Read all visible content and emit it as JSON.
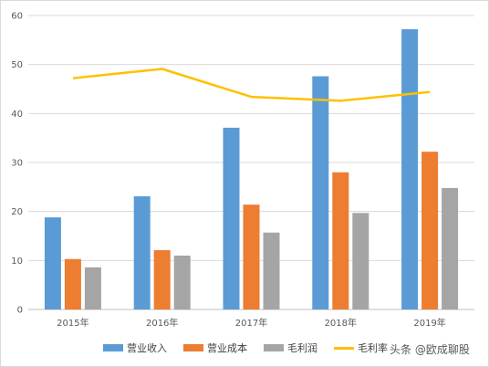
{
  "chart_data": {
    "type": "bar",
    "categories": [
      "2015年",
      "2016年",
      "2017年",
      "2018年",
      "2019年"
    ],
    "series": [
      {
        "name": "营业收入",
        "values": [
          18.8,
          23.1,
          37.1,
          47.6,
          57.2
        ],
        "color": "#5b9bd5"
      },
      {
        "name": "营业成本",
        "values": [
          10.3,
          12.1,
          21.4,
          28.0,
          32.2
        ],
        "color": "#ed7d31"
      },
      {
        "name": "毛利润",
        "values": [
          8.6,
          11.0,
          15.7,
          19.7,
          24.8
        ],
        "color": "#a5a5a5"
      }
    ],
    "line_series": [
      {
        "name": "毛利率",
        "values": [
          47.2,
          49.1,
          43.4,
          42.6,
          44.4
        ],
        "color": "#ffc000"
      }
    ],
    "ylim": [
      0,
      60
    ],
    "yticks": [
      0,
      10,
      20,
      30,
      40,
      50,
      60
    ],
    "grid": true,
    "legend_position": "bottom"
  },
  "watermark": "头条 @欧成聊股"
}
